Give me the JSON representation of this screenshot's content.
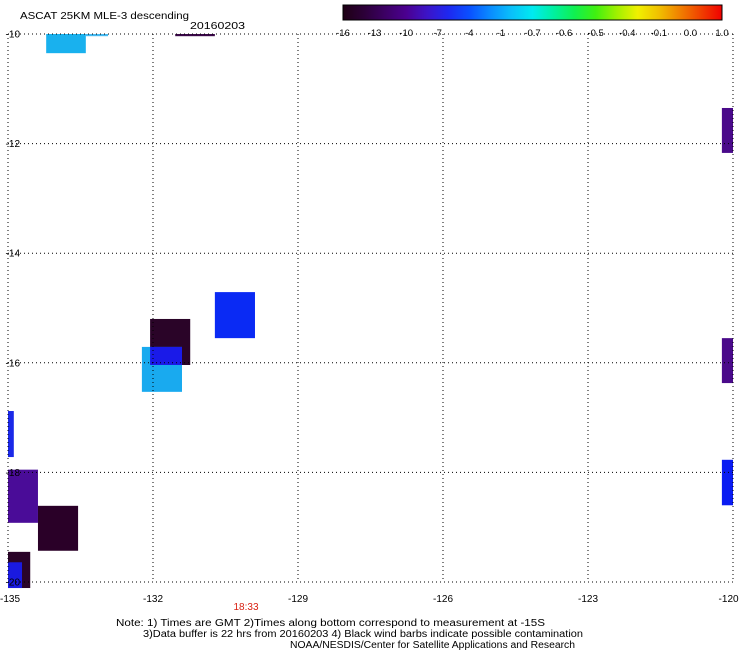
{
  "chart_data": {
    "type": "heatmap",
    "title": "ASCAT 25KM MLE-3 descending",
    "subtitle": "20160203",
    "xlabel": "",
    "ylabel": "",
    "xlim": [
      -135,
      -120
    ],
    "ylim": [
      -20,
      -10
    ],
    "x_ticks": [
      -135,
      -132,
      -129,
      -126,
      -123,
      -120
    ],
    "y_ticks": [
      -10,
      -12,
      -14,
      -16,
      -18,
      -20
    ],
    "grid": true,
    "time_labels": [
      "18:33"
    ],
    "colorbar": {
      "placement": "top-right",
      "tick_labels": [
        "-16",
        "-13",
        "-10",
        "-7",
        "-4",
        "-1",
        "-0.7",
        "-0.6",
        "-0.5",
        "-0.4",
        "-0.1",
        "0.0",
        "1.0"
      ],
      "palette": [
        "#1e0014",
        "#2c0038",
        "#3c0064",
        "#4b0090",
        "#3c14c8",
        "#1e28f0",
        "#0a50ff",
        "#0a8cff",
        "#0ac0fa",
        "#00eaf0",
        "#00f0a0",
        "#10f050",
        "#40f010",
        "#a0f000",
        "#f0f000",
        "#f0c000",
        "#f08000",
        "#f04000",
        "#f00000"
      ]
    },
    "cells": [
      {
        "lon": [
          -134.21,
          -133.39
        ],
        "lat": [
          -10.0,
          -10.35
        ],
        "value": -2.5,
        "color": "#19b1ee"
      },
      {
        "lon": [
          -133.39,
          -132.93
        ],
        "lat": [
          -10.0,
          -10.04
        ],
        "value": -2,
        "color": "#44b8f0"
      },
      {
        "lon": [
          -131.54,
          -130.72
        ],
        "lat": [
          -10.0,
          -10.04
        ],
        "value": -14,
        "color": "#3a0848"
      },
      {
        "lon": [
          -120.23,
          -120.0
        ],
        "lat": [
          -11.35,
          -12.17
        ],
        "value": -12,
        "color": "#4a0a8a"
      },
      {
        "lon": [
          -130.72,
          -129.89
        ],
        "lat": [
          -14.71,
          -15.55
        ],
        "value": -7,
        "color": "#0a2af4"
      },
      {
        "lon": [
          -132.06,
          -131.23
        ],
        "lat": [
          -15.2,
          -16.04
        ],
        "value": -15,
        "color": "#2a0428"
      },
      {
        "lon": [
          -132.23,
          -131.4
        ],
        "lat": [
          -15.71,
          -16.53
        ],
        "value": -2.5,
        "color": "#19aaef"
      },
      {
        "lon": [
          -132.06,
          -131.4
        ],
        "lat": [
          -15.71,
          -16.04
        ],
        "value": -8,
        "color": "#1a1ae8"
      },
      {
        "lon": [
          -120.23,
          -120.0
        ],
        "lat": [
          -15.55,
          -16.37
        ],
        "value": -12,
        "color": "#4a0a8a"
      },
      {
        "lon": [
          -135.0,
          -134.88
        ],
        "lat": [
          -16.88,
          -17.72
        ],
        "value": -8,
        "color": "#1a28e8"
      },
      {
        "lon": [
          -120.23,
          -120.0
        ],
        "lat": [
          -17.77,
          -18.6
        ],
        "value": -8,
        "color": "#0a1cf2"
      },
      {
        "lon": [
          -135.0,
          -134.38
        ],
        "lat": [
          -17.95,
          -18.92
        ],
        "value": -12,
        "color": "#4a0c98"
      },
      {
        "lon": [
          -134.38,
          -133.55
        ],
        "lat": [
          -18.61,
          -19.43
        ],
        "value": -15,
        "color": "#2a0028"
      },
      {
        "lon": [
          -135.0,
          -134.54
        ],
        "lat": [
          -19.45,
          -20.11
        ],
        "value": -15,
        "color": "#2a0428"
      },
      {
        "lon": [
          -135.0,
          -134.71
        ],
        "lat": [
          -19.64,
          -20.11
        ],
        "value": -8,
        "color": "#1a1ae0"
      }
    ]
  },
  "notes": [
    "Note: 1) Times are GMT 2)Times along bottom correspond to measurement at -15S",
    "3)Data buffer is 22 hrs from 20160203 4) Black wind barbs indicate possible contamination",
    "NOAA/NESDIS/Center for Satellite Applications and Research"
  ]
}
